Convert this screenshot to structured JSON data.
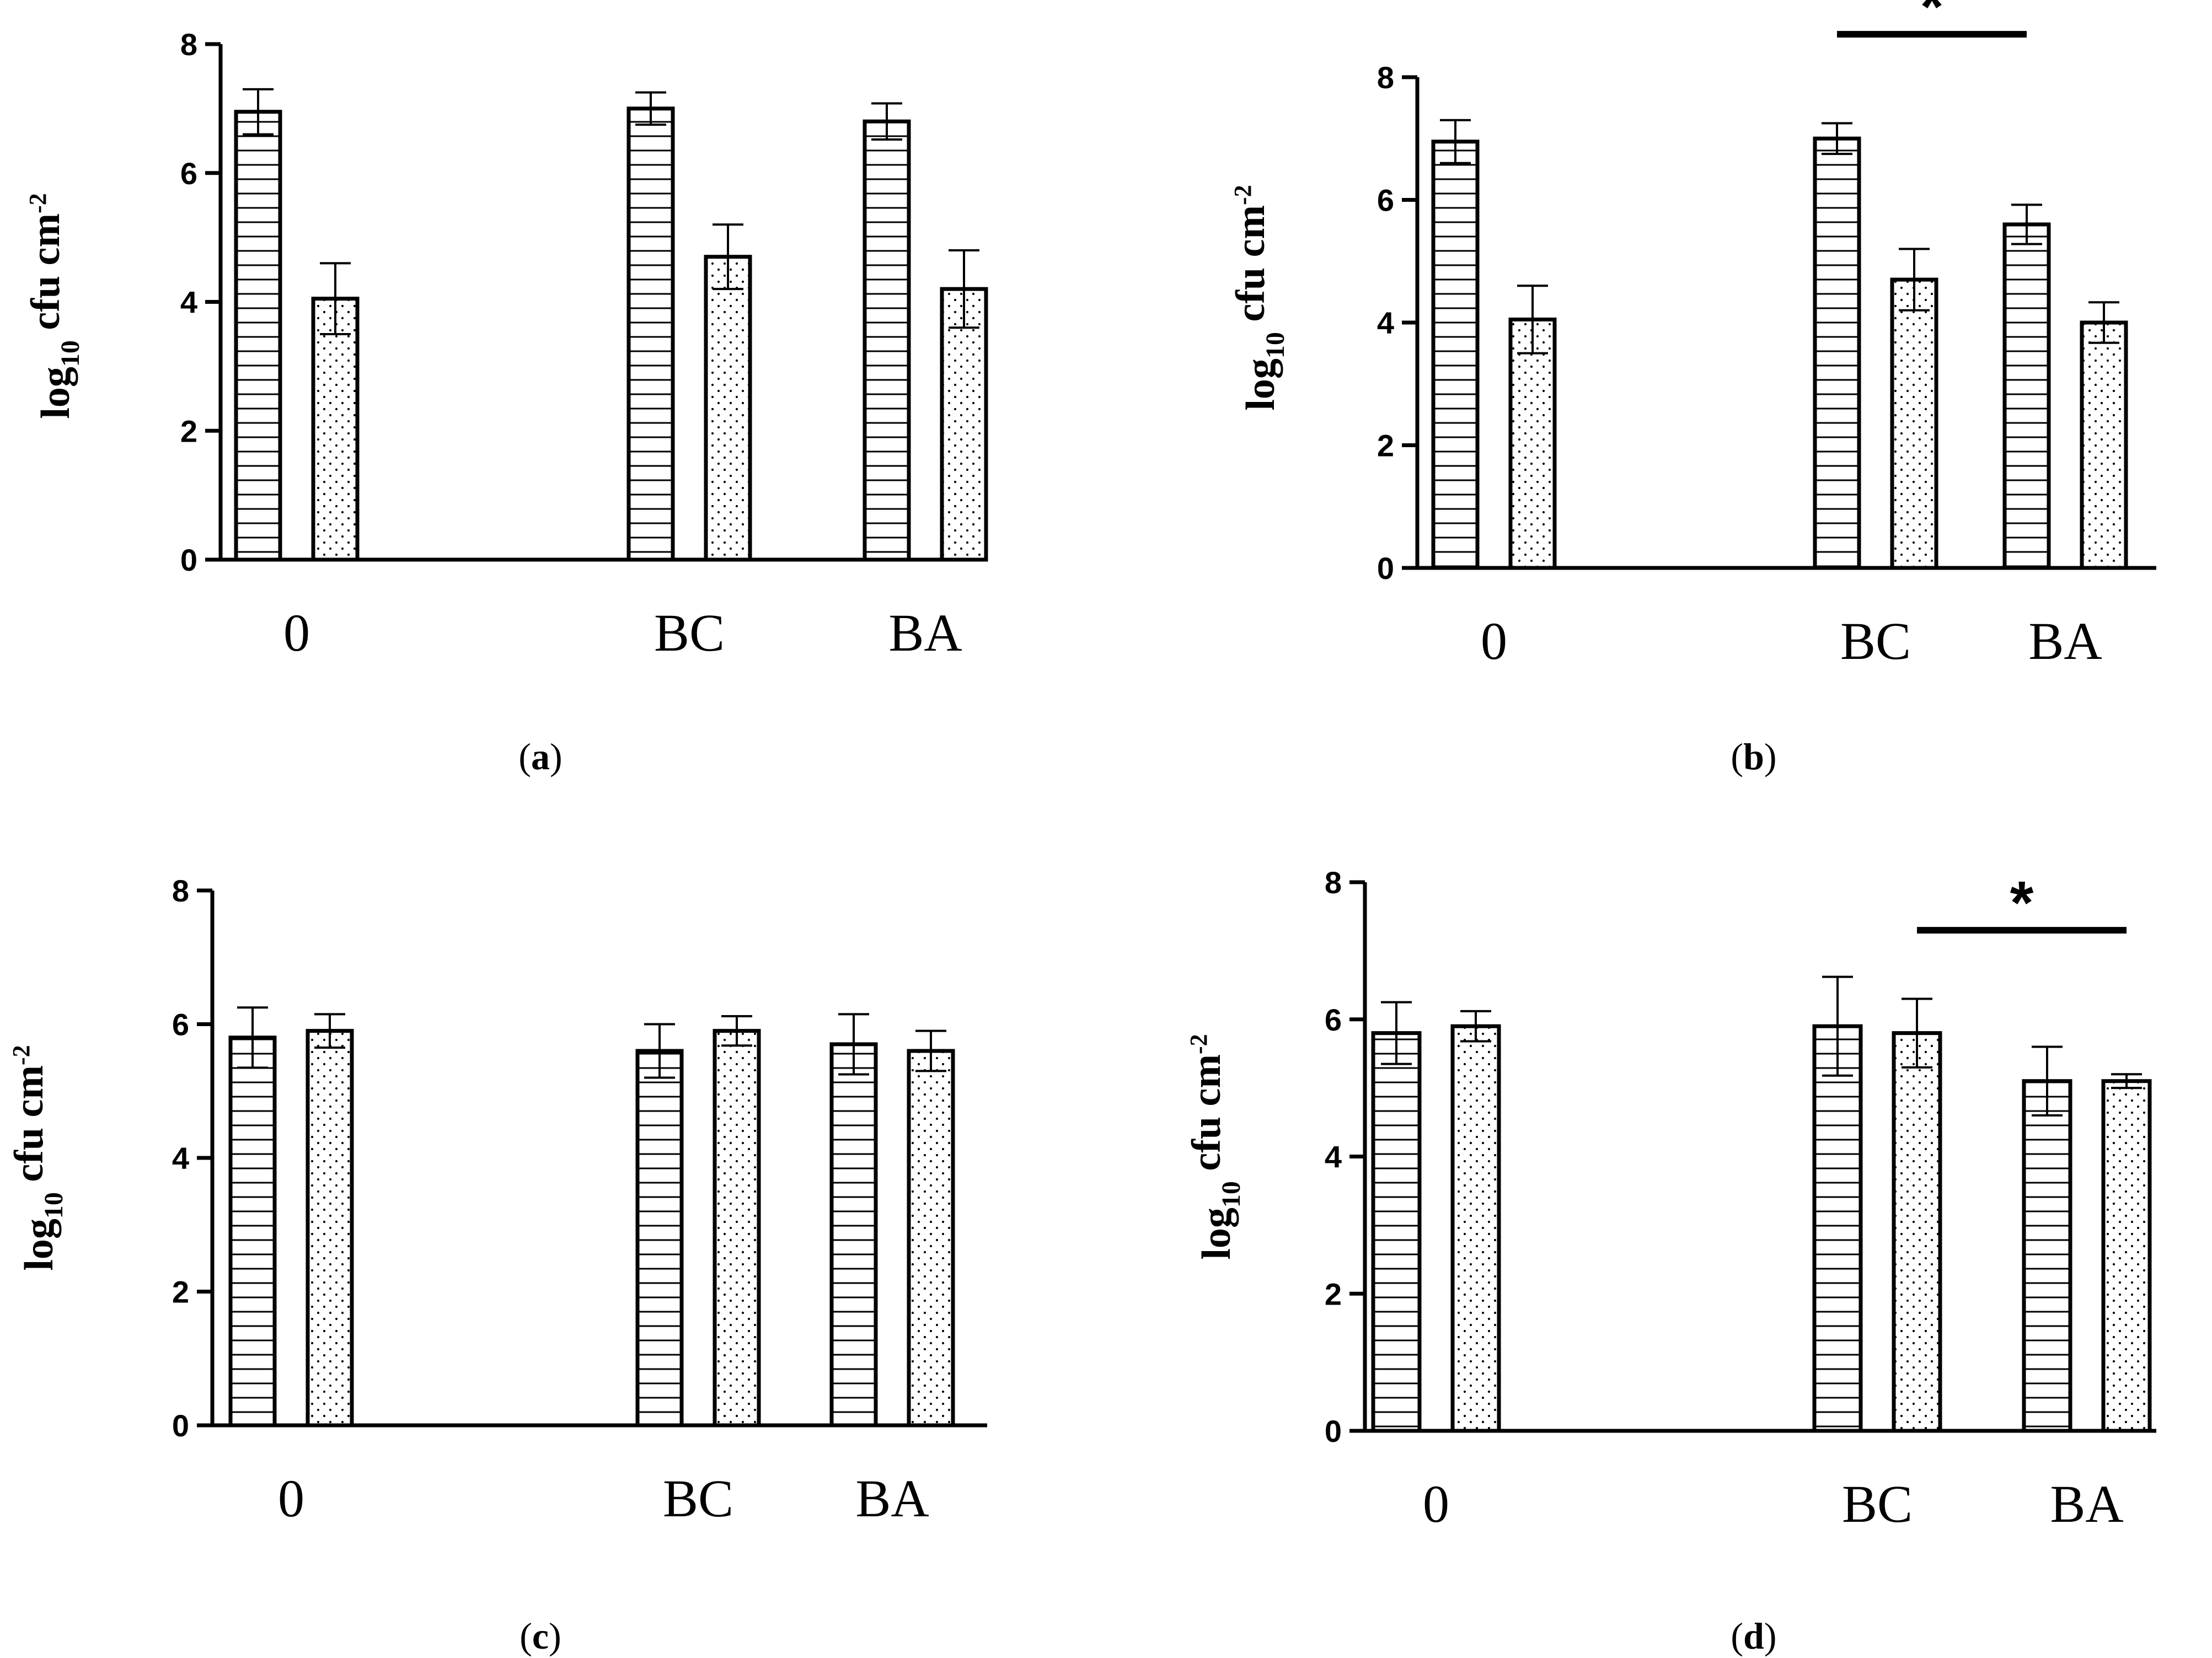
{
  "colors": {
    "ink": "#000000",
    "bar_fill": "#ffffff"
  },
  "series": [
    {
      "name": "series-1",
      "pattern": "horizontal-lines"
    },
    {
      "name": "series-2",
      "pattern": "dots"
    }
  ],
  "captions": [
    {
      "open": "(",
      "letter": "a",
      "close": ")"
    },
    {
      "open": "(",
      "letter": "b",
      "close": ")"
    },
    {
      "open": "(",
      "letter": "c",
      "close": ")"
    },
    {
      "open": "(",
      "letter": "d",
      "close": ")"
    }
  ],
  "chart_data": [
    {
      "type": "bar",
      "id": "a",
      "categories": [
        "0",
        "BC",
        "BA"
      ],
      "ylabel": {
        "main": "log",
        "sub": "10",
        "unit": " cfu cm",
        "sup": "-2"
      },
      "ylim": [
        0,
        8
      ],
      "yticks": [
        "0",
        "2",
        "4",
        "6",
        "8"
      ],
      "series": [
        {
          "name": "series-1",
          "values": [
            6.95,
            7.0,
            6.8
          ],
          "errors": [
            0.35,
            0.25,
            0.28
          ]
        },
        {
          "name": "series-2",
          "values": [
            4.05,
            4.7,
            4.2
          ],
          "errors": [
            0.55,
            0.5,
            0.6
          ]
        }
      ],
      "significance": []
    },
    {
      "type": "bar",
      "id": "b",
      "categories": [
        "0",
        "BC",
        "BA"
      ],
      "ylabel": {
        "main": "log",
        "sub": "10",
        "unit": " cfu cm",
        "sup": "-2"
      },
      "ylim": [
        0,
        8
      ],
      "yticks": [
        "0",
        "2",
        "4",
        "6",
        "8"
      ],
      "series": [
        {
          "name": "series-1",
          "values": [
            6.95,
            7.0,
            5.6
          ],
          "errors": [
            0.35,
            0.25,
            0.32
          ]
        },
        {
          "name": "series-2",
          "values": [
            4.05,
            4.7,
            4.0
          ],
          "errors": [
            0.55,
            0.5,
            0.33
          ]
        }
      ],
      "significance": [
        {
          "from": [
            1,
            0
          ],
          "to": [
            2,
            0
          ],
          "level": 8.7,
          "label": "*"
        }
      ]
    },
    {
      "type": "bar",
      "id": "c",
      "categories": [
        "0",
        "BC",
        "BA"
      ],
      "ylabel": {
        "main": "log",
        "sub": "10",
        "unit": " cfu cm",
        "sup": "-2"
      },
      "ylim": [
        0,
        8
      ],
      "yticks": [
        "0",
        "2",
        "4",
        "6",
        "8"
      ],
      "series": [
        {
          "name": "series-1",
          "values": [
            5.8,
            5.6,
            5.7
          ],
          "errors": [
            0.45,
            0.4,
            0.45
          ]
        },
        {
          "name": "series-2",
          "values": [
            5.9,
            5.9,
            5.6
          ],
          "errors": [
            0.25,
            0.22,
            0.3
          ]
        }
      ],
      "significance": []
    },
    {
      "type": "bar",
      "id": "d",
      "categories": [
        "0",
        "BC",
        "BA"
      ],
      "ylabel": {
        "main": "log",
        "sub": "10",
        "unit": " cfu cm",
        "sup": "-2"
      },
      "ylim": [
        0,
        8
      ],
      "yticks": [
        "0",
        "2",
        "4",
        "6",
        "8"
      ],
      "series": [
        {
          "name": "series-1",
          "values": [
            5.8,
            5.9,
            5.1
          ],
          "errors": [
            0.45,
            0.72,
            0.5
          ]
        },
        {
          "name": "series-2",
          "values": [
            5.9,
            5.8,
            5.1
          ],
          "errors": [
            0.22,
            0.5,
            0.1
          ]
        }
      ],
      "significance": [
        {
          "from": [
            1,
            1
          ],
          "to": [
            2,
            1
          ],
          "level": 7.3,
          "label": "*"
        }
      ]
    }
  ]
}
